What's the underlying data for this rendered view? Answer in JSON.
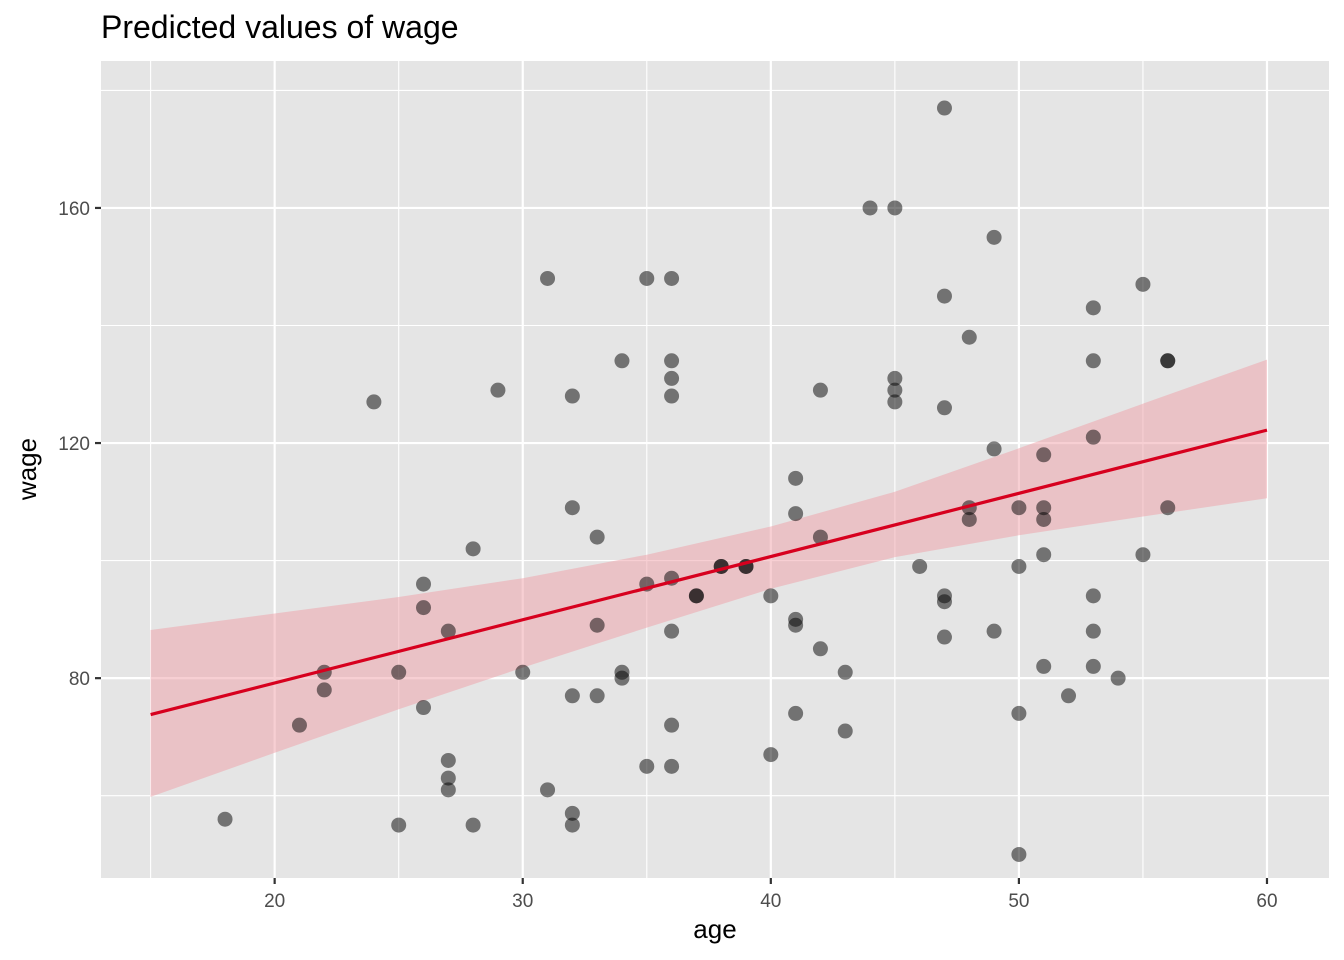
{
  "chart_data": {
    "type": "scatter",
    "title": "Predicted values of wage",
    "xlabel": "age",
    "ylabel": "wage",
    "xlim": [
      13,
      62.5
    ],
    "ylim": [
      46,
      185
    ],
    "x_ticks": [
      20,
      30,
      40,
      50,
      60
    ],
    "y_ticks": [
      80,
      120,
      160
    ],
    "grid": true,
    "colors": {
      "panel_background": "#e5e5e5",
      "grid": "#ffffff",
      "points": "#000000",
      "fit_line": "#d7001e",
      "confidence_band": "#f0a0a8"
    },
    "points": [
      {
        "x": 18,
        "y": 56
      },
      {
        "x": 21,
        "y": 72
      },
      {
        "x": 22,
        "y": 81
      },
      {
        "x": 22,
        "y": 78
      },
      {
        "x": 24,
        "y": 127
      },
      {
        "x": 25,
        "y": 81
      },
      {
        "x": 25,
        "y": 55
      },
      {
        "x": 26,
        "y": 96
      },
      {
        "x": 26,
        "y": 92
      },
      {
        "x": 26,
        "y": 75
      },
      {
        "x": 27,
        "y": 88
      },
      {
        "x": 27,
        "y": 66
      },
      {
        "x": 27,
        "y": 63
      },
      {
        "x": 27,
        "y": 61
      },
      {
        "x": 28,
        "y": 102
      },
      {
        "x": 28,
        "y": 55
      },
      {
        "x": 29,
        "y": 129
      },
      {
        "x": 30,
        "y": 81
      },
      {
        "x": 31,
        "y": 148
      },
      {
        "x": 31,
        "y": 61
      },
      {
        "x": 32,
        "y": 128
      },
      {
        "x": 32,
        "y": 109
      },
      {
        "x": 32,
        "y": 77
      },
      {
        "x": 32,
        "y": 57
      },
      {
        "x": 32,
        "y": 55
      },
      {
        "x": 33,
        "y": 104
      },
      {
        "x": 33,
        "y": 89
      },
      {
        "x": 33,
        "y": 77
      },
      {
        "x": 34,
        "y": 134
      },
      {
        "x": 34,
        "y": 81
      },
      {
        "x": 34,
        "y": 80
      },
      {
        "x": 35,
        "y": 148
      },
      {
        "x": 35,
        "y": 96
      },
      {
        "x": 35,
        "y": 65
      },
      {
        "x": 36,
        "y": 148
      },
      {
        "x": 36,
        "y": 134
      },
      {
        "x": 36,
        "y": 131
      },
      {
        "x": 36,
        "y": 128
      },
      {
        "x": 36,
        "y": 97
      },
      {
        "x": 36,
        "y": 88
      },
      {
        "x": 36,
        "y": 72
      },
      {
        "x": 36,
        "y": 65
      },
      {
        "x": 37,
        "y": 94
      },
      {
        "x": 37,
        "y": 94
      },
      {
        "x": 38,
        "y": 99
      },
      {
        "x": 38,
        "y": 99
      },
      {
        "x": 39,
        "y": 99
      },
      {
        "x": 39,
        "y": 99
      },
      {
        "x": 40,
        "y": 94
      },
      {
        "x": 40,
        "y": 67
      },
      {
        "x": 41,
        "y": 114
      },
      {
        "x": 41,
        "y": 108
      },
      {
        "x": 41,
        "y": 90
      },
      {
        "x": 41,
        "y": 89
      },
      {
        "x": 41,
        "y": 74
      },
      {
        "x": 42,
        "y": 129
      },
      {
        "x": 42,
        "y": 104
      },
      {
        "x": 42,
        "y": 85
      },
      {
        "x": 43,
        "y": 81
      },
      {
        "x": 43,
        "y": 71
      },
      {
        "x": 44,
        "y": 160
      },
      {
        "x": 45,
        "y": 160
      },
      {
        "x": 45,
        "y": 131
      },
      {
        "x": 45,
        "y": 129
      },
      {
        "x": 45,
        "y": 127
      },
      {
        "x": 46,
        "y": 99
      },
      {
        "x": 47,
        "y": 177
      },
      {
        "x": 47,
        "y": 145
      },
      {
        "x": 47,
        "y": 126
      },
      {
        "x": 47,
        "y": 94
      },
      {
        "x": 47,
        "y": 93
      },
      {
        "x": 47,
        "y": 87
      },
      {
        "x": 48,
        "y": 138
      },
      {
        "x": 48,
        "y": 109
      },
      {
        "x": 48,
        "y": 107
      },
      {
        "x": 49,
        "y": 155
      },
      {
        "x": 49,
        "y": 119
      },
      {
        "x": 49,
        "y": 88
      },
      {
        "x": 50,
        "y": 109
      },
      {
        "x": 50,
        "y": 99
      },
      {
        "x": 50,
        "y": 74
      },
      {
        "x": 50,
        "y": 50
      },
      {
        "x": 51,
        "y": 118
      },
      {
        "x": 51,
        "y": 109
      },
      {
        "x": 51,
        "y": 107
      },
      {
        "x": 51,
        "y": 101
      },
      {
        "x": 51,
        "y": 82
      },
      {
        "x": 52,
        "y": 77
      },
      {
        "x": 53,
        "y": 143
      },
      {
        "x": 53,
        "y": 134
      },
      {
        "x": 53,
        "y": 121
      },
      {
        "x": 53,
        "y": 94
      },
      {
        "x": 53,
        "y": 88
      },
      {
        "x": 53,
        "y": 82
      },
      {
        "x": 54,
        "y": 80
      },
      {
        "x": 55,
        "y": 147
      },
      {
        "x": 55,
        "y": 101
      },
      {
        "x": 56,
        "y": 134
      },
      {
        "x": 56,
        "y": 134
      },
      {
        "x": 56,
        "y": 109
      }
    ],
    "fit": {
      "x": [
        15,
        60
      ],
      "y": [
        73.8,
        122.2
      ],
      "lower": [
        59.8,
        110.6
      ],
      "upper": [
        88.2,
        134.2
      ],
      "band_x": [
        15,
        20,
        25,
        30,
        35,
        40,
        45,
        50,
        55,
        60
      ],
      "band_lower": [
        59.8,
        67.3,
        74.7,
        81.8,
        88.6,
        95.2,
        100.6,
        104.3,
        107.5,
        110.6
      ],
      "band_upper": [
        88.2,
        91.0,
        93.8,
        97.0,
        101.0,
        105.8,
        111.7,
        119.1,
        126.7,
        134.2
      ]
    }
  }
}
